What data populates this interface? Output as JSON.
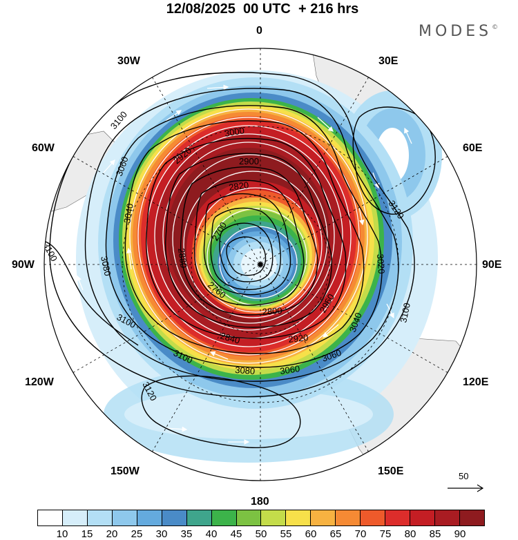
{
  "title": "12/08/2025  00 UTC  + 216 hrs",
  "brand": "MODES",
  "brand_mark": "©",
  "longitude_labels": {
    "top": "0",
    "bottom": "180",
    "left": "90W",
    "right": "90E",
    "upper_left_30": "30W",
    "upper_left_60": "60W",
    "upper_right_30": "30E",
    "upper_right_60": "60E",
    "lower_left_120": "120W",
    "lower_left_150": "150W",
    "lower_right_120": "120E",
    "lower_right_150": "150E"
  },
  "contour_labels": {
    "c2700": "2700",
    "c2760": "2760",
    "c2800": "2800",
    "c2820": "2820",
    "c2840": "2840",
    "c2880": "2880",
    "c2900": "2900",
    "c2920": "2920",
    "c2960": "2960",
    "c3000": "3000",
    "c3020": "3020",
    "c3040": "3040",
    "c3060": "3060",
    "c3080": "3080",
    "c3100": "3100",
    "c3120": "3120"
  },
  "reference_vector": "50",
  "colorbar": {
    "colors": [
      "#ffffff",
      "#d6eefa",
      "#b3dff5",
      "#8ec8ec",
      "#64aade",
      "#4a8bc7",
      "#3fa58c",
      "#3cb34a",
      "#7cc242",
      "#c4dc4a",
      "#f7e04a",
      "#f7b241",
      "#f58a34",
      "#ee5a2b",
      "#dc2d2b",
      "#c41e24",
      "#a91c22",
      "#8e1b1f"
    ],
    "ticks": [
      "10",
      "15",
      "20",
      "25",
      "30",
      "35",
      "40",
      "45",
      "50",
      "55",
      "60",
      "65",
      "70",
      "75",
      "80",
      "85",
      "90"
    ]
  },
  "icons": [
    "pole-marker-icon",
    "wind-streamline-arrow-icon",
    "reference-vector-arrow-icon"
  ]
}
